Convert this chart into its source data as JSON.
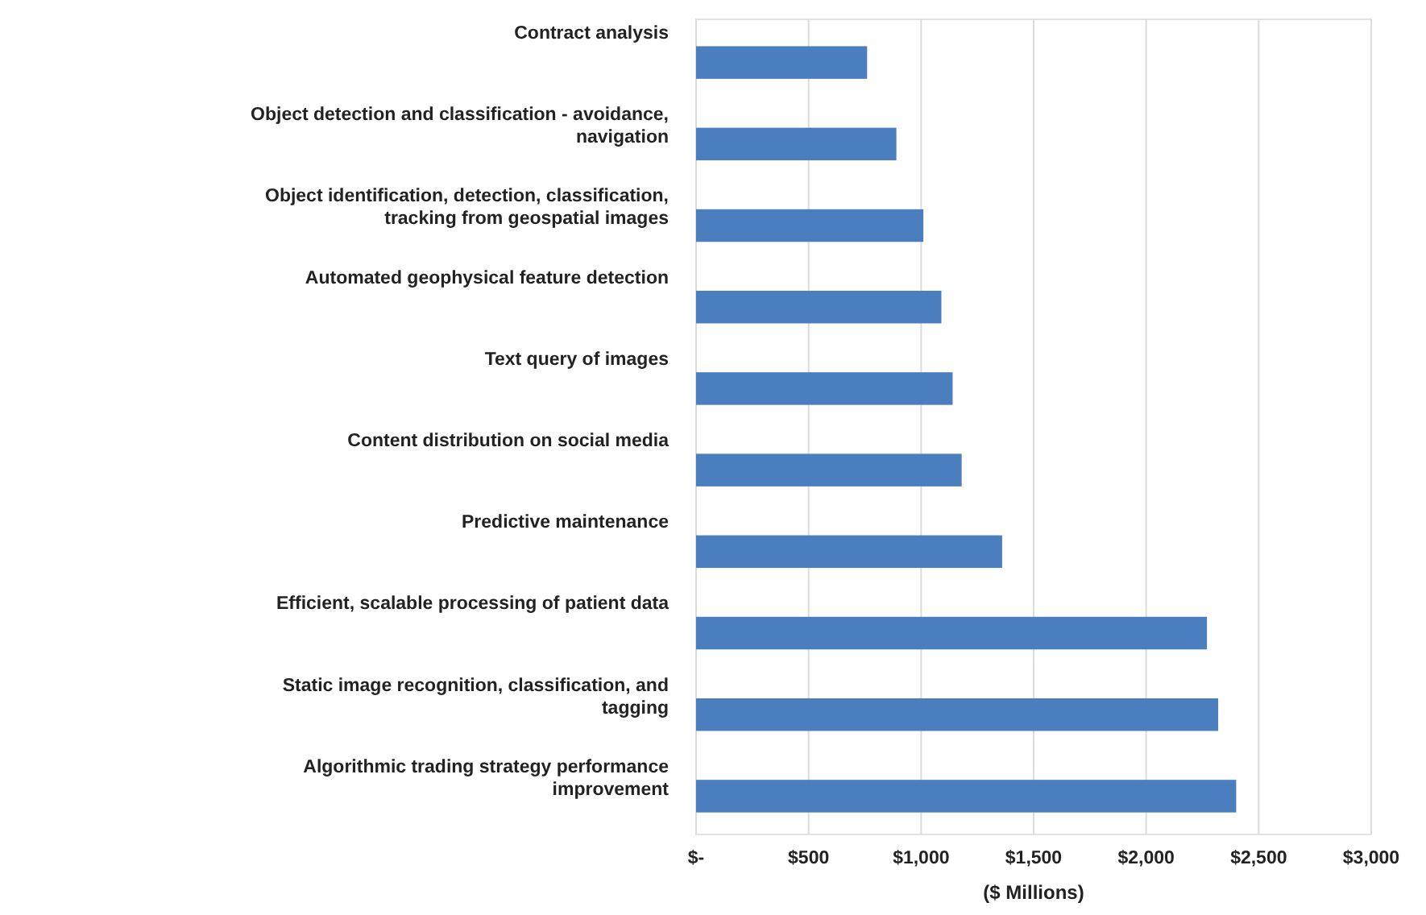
{
  "chart_data": {
    "type": "bar",
    "orientation": "horizontal",
    "xlabel": "($ Millions)",
    "categories": [
      "Contract analysis",
      "Object detection and classification - avoidance, navigation",
      "Object identification, detection, classification, tracking from geospatial images",
      "Automated geophysical feature detection",
      "Text query of images",
      "Content distribution on social media",
      "Predictive maintenance",
      "Efficient, scalable processing of patient data",
      "Static image recognition, classification, and tagging",
      "Algorithmic trading strategy performance improvement"
    ],
    "values": [
      760,
      890,
      1010,
      1090,
      1140,
      1180,
      1360,
      2270,
      2320,
      2400
    ],
    "color": "#4a7ebf",
    "xlim": [
      0,
      3000
    ],
    "xticks": [
      {
        "value": 0,
        "label": "$-"
      },
      {
        "value": 500,
        "label": "$500"
      },
      {
        "value": 1000,
        "label": "$1,000"
      },
      {
        "value": 1500,
        "label": "$1,500"
      },
      {
        "value": 2000,
        "label": "$2,000"
      },
      {
        "value": 2500,
        "label": "$2,500"
      },
      {
        "value": 3000,
        "label": "$3,000"
      }
    ],
    "grid": "x"
  }
}
